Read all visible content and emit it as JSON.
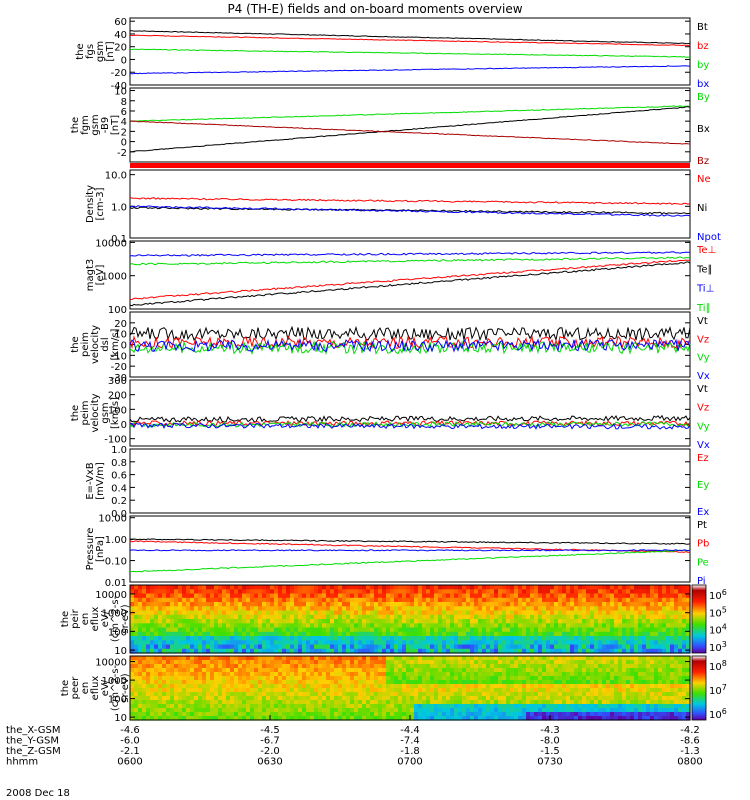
{
  "title": "P4 (TH-E) fields and on-board moments overview",
  "date_label": "2008 Dec 18",
  "chart_data": {
    "type": "multi-panel",
    "title": "P4 (TH-E) fields and on-board moments overview",
    "x_axis": {
      "label": "hhmm",
      "ticks": [
        "0600",
        "0630",
        "0700",
        "0730",
        "0800"
      ],
      "ephemeris": [
        {
          "label": "the_X-GSM",
          "values": [
            "-4.6",
            "-4.5",
            "-4.4",
            "-4.3",
            "-4.2"
          ]
        },
        {
          "label": "the_Y-GSM",
          "values": [
            "-6.0",
            "-6.7",
            "-7.4",
            "-8.0",
            "-8.6"
          ]
        },
        {
          "label": "the_Z-GSM",
          "values": [
            "-2.1",
            "-2.0",
            "-1.8",
            "-1.5",
            "-1.3"
          ]
        }
      ]
    },
    "panels": [
      {
        "id": "fgs",
        "ylabel": [
          "the",
          "fgs",
          "gsm",
          "[nT]"
        ],
        "ylim": [
          -40,
          65
        ],
        "log": false,
        "ticks": [
          "60",
          "40",
          "20",
          "0",
          "-20",
          "-40"
        ],
        "series": [
          {
            "name": "Bt",
            "color": "#000000",
            "start": 45,
            "end": 25
          },
          {
            "name": "bz",
            "color": "#ff0000",
            "start": 38,
            "end": 22
          },
          {
            "name": "by",
            "color": "#00dd00",
            "start": 16,
            "end": 4
          },
          {
            "name": "bx",
            "color": "#0000ff",
            "start": -22,
            "end": -10
          }
        ]
      },
      {
        "id": "fgm",
        "ylabel": [
          "the",
          "fgm",
          "gsm",
          "-B9",
          "[nT]"
        ],
        "ylim": [
          -4,
          10.5
        ],
        "log": false,
        "ticks": [
          "10",
          "8",
          "6",
          "4",
          "2",
          "0",
          "-2"
        ],
        "series": [
          {
            "name": "By",
            "color": "#00dd00",
            "start": 4,
            "end": 7
          },
          {
            "name": "Bx",
            "color": "#000000",
            "start": -2,
            "end": 6.8
          },
          {
            "name": "Bz",
            "color": "#aa0000",
            "start": 4,
            "end": -0.5
          }
        ]
      },
      {
        "id": "density",
        "ylabel": [
          "Density",
          "[cm-3]"
        ],
        "ylim": [
          0.1,
          14
        ],
        "log": true,
        "ticks": [
          "10.0",
          "1.0",
          "0.1"
        ],
        "series": [
          {
            "name": "Ne",
            "color": "#ff0000",
            "start": 1.8,
            "end": 1.2
          },
          {
            "name": "Ni",
            "color": "#000000",
            "start": 0.9,
            "end": 0.6
          },
          {
            "name": "Npot",
            "color": "#0000ff",
            "start": 1.0,
            "end": 0.5
          }
        ]
      },
      {
        "id": "temp",
        "ylabel": [
          "magt3",
          "[eV]"
        ],
        "ylim": [
          100,
          11000
        ],
        "log": true,
        "ticks": [
          "10000",
          "1000",
          "100"
        ],
        "series": [
          {
            "name": "Te⊥",
            "color": "#ff0000",
            "start": 200,
            "end": 3000
          },
          {
            "name": "Te∥",
            "color": "#000000",
            "start": 130,
            "end": 2500
          },
          {
            "name": "Ti⊥",
            "color": "#0000ff",
            "start": 4000,
            "end": 5000
          },
          {
            "name": "Ti∥",
            "color": "#00dd00",
            "start": 2200,
            "end": 3500
          }
        ]
      },
      {
        "id": "peim_dsl",
        "ylabel": [
          "the",
          "peim",
          "velocity",
          "dsl",
          "[km/s]"
        ],
        "ylim": [
          -30,
          30
        ],
        "log": false,
        "ticks": [
          "20",
          "10",
          "0",
          "-10",
          "-20",
          "-30"
        ],
        "series": [
          {
            "name": "Vt",
            "color": "#000000",
            "start": 10,
            "end": 10
          },
          {
            "name": "Vz",
            "color": "#ff0000",
            "start": 2,
            "end": 2
          },
          {
            "name": "Vy",
            "color": "#00dd00",
            "start": -3,
            "end": -3
          },
          {
            "name": "Vx",
            "color": "#0000ff",
            "start": -1,
            "end": -1
          }
        ]
      },
      {
        "id": "peim_gsm",
        "ylabel": [
          "the",
          "peim",
          "velocity",
          "gsm",
          "[km/s]"
        ],
        "ylim": [
          -150,
          300
        ],
        "log": false,
        "ticks": [
          "300",
          "200",
          "100",
          "0",
          "-100"
        ],
        "series": [
          {
            "name": "Vt",
            "color": "#000000",
            "start": 30,
            "end": 40
          },
          {
            "name": "Vz",
            "color": "#ff0000",
            "start": 5,
            "end": 5
          },
          {
            "name": "Vy",
            "color": "#00dd00",
            "start": -5,
            "end": 0
          },
          {
            "name": "Vx",
            "color": "#0000ff",
            "start": -10,
            "end": -20
          }
        ]
      },
      {
        "id": "efield",
        "ylabel": [
          "E=-VxB",
          "[mV/m]"
        ],
        "ylim": [
          0,
          1
        ],
        "log": false,
        "ticks": [
          "1.0",
          "0.8",
          "0.6",
          "0.4",
          "0.2",
          "0.0"
        ],
        "series": [
          {
            "name": "Ez",
            "color": "#ff0000"
          },
          {
            "name": "Ey",
            "color": "#00dd00"
          },
          {
            "name": "Ex",
            "color": "#0000ff"
          }
        ]
      },
      {
        "id": "pressure",
        "ylabel": [
          "Pressure",
          "[nPa]"
        ],
        "ylim": [
          0.01,
          12
        ],
        "log": true,
        "ticks": [
          "10.00",
          "1.00",
          "0.10",
          "0.01"
        ],
        "series": [
          {
            "name": "Pt",
            "color": "#000000",
            "start": 1.0,
            "end": 0.6
          },
          {
            "name": "Pb",
            "color": "#ff0000",
            "start": 0.8,
            "end": 0.25
          },
          {
            "name": "Pe",
            "color": "#00dd00",
            "start": 0.03,
            "end": 0.3
          },
          {
            "name": "Pi",
            "color": "#0000ff",
            "start": 0.3,
            "end": 0.3
          }
        ]
      },
      {
        "id": "peir",
        "ylabel": [
          "the",
          "peir",
          "en",
          "eflux",
          "eV/",
          "(cm^2-s-",
          "sr-eV)"
        ],
        "ylim": [
          7,
          30000
        ],
        "log": true,
        "ticks": [
          "10000",
          "1000",
          "100",
          "10"
        ],
        "spectrogram": true,
        "colorbar": {
          "ticks": [
            "10^6",
            "10^5",
            "10^4",
            "10^3"
          ]
        }
      },
      {
        "id": "peer",
        "ylabel": [
          "the",
          "peer",
          "en",
          "eflux",
          "eV/",
          "(cm^2-s-",
          "sr-eV)"
        ],
        "ylim": [
          7,
          20000
        ],
        "log": true,
        "ticks": [
          "10000",
          "1000",
          "100",
          "10"
        ],
        "spectrogram": true,
        "colorbar": {
          "ticks": [
            "10^8",
            "10^7",
            "10^6"
          ]
        }
      }
    ]
  }
}
